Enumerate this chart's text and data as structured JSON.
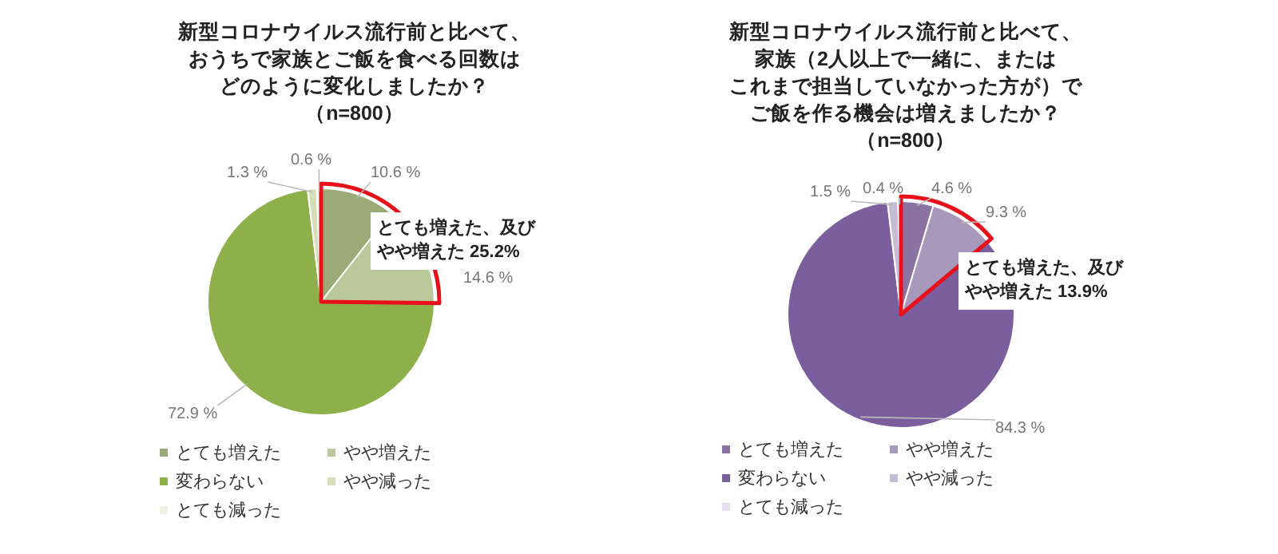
{
  "chart_data": [
    {
      "type": "pie",
      "title": "新型コロナウイルス流行前と比べて、おうちで家族とご飯を食べる回数はどのように変化しましたか？",
      "subtitle": "（n=800）",
      "categories": [
        "とても増えた",
        "やや増えた",
        "変わらない",
        "やや減った",
        "とても減った"
      ],
      "values": [
        10.6,
        14.6,
        72.9,
        1.3,
        0.6
      ],
      "colors": [
        "#9aab78",
        "#b9c99a",
        "#8db04a",
        "#d4deb9",
        "#eef2e2"
      ],
      "value_labels": [
        "10.6 %",
        "14.6 %",
        "72.9 %",
        "1.3 %",
        "0.6 %"
      ],
      "annotations": [
        "とても増えた、及びやや増えた 25.2%"
      ],
      "legend": "bottom"
    },
    {
      "type": "pie",
      "title": "新型コロナウイルス流行前と比べて、家族（2人以上で一緒に、またはこれまで担当していなかった方が）でご飯を作る機会は増えましたか？",
      "subtitle": "（n=800）",
      "categories": [
        "とても増えた",
        "やや増えた",
        "変わらない",
        "やや減った",
        "とても減った"
      ],
      "values": [
        4.6,
        9.3,
        84.3,
        1.5,
        0.4
      ],
      "colors": [
        "#8a72a2",
        "#a898bc",
        "#7b5e9e",
        "#c6bcd6",
        "#e6e0ee"
      ],
      "value_labels": [
        "4.6 %",
        "9.3 %",
        "84.3 %",
        "1.5 %",
        "0.4 %"
      ],
      "annotations": [
        "とても増えた、及びやや増えた 13.9%"
      ],
      "legend": "bottom"
    }
  ]
}
